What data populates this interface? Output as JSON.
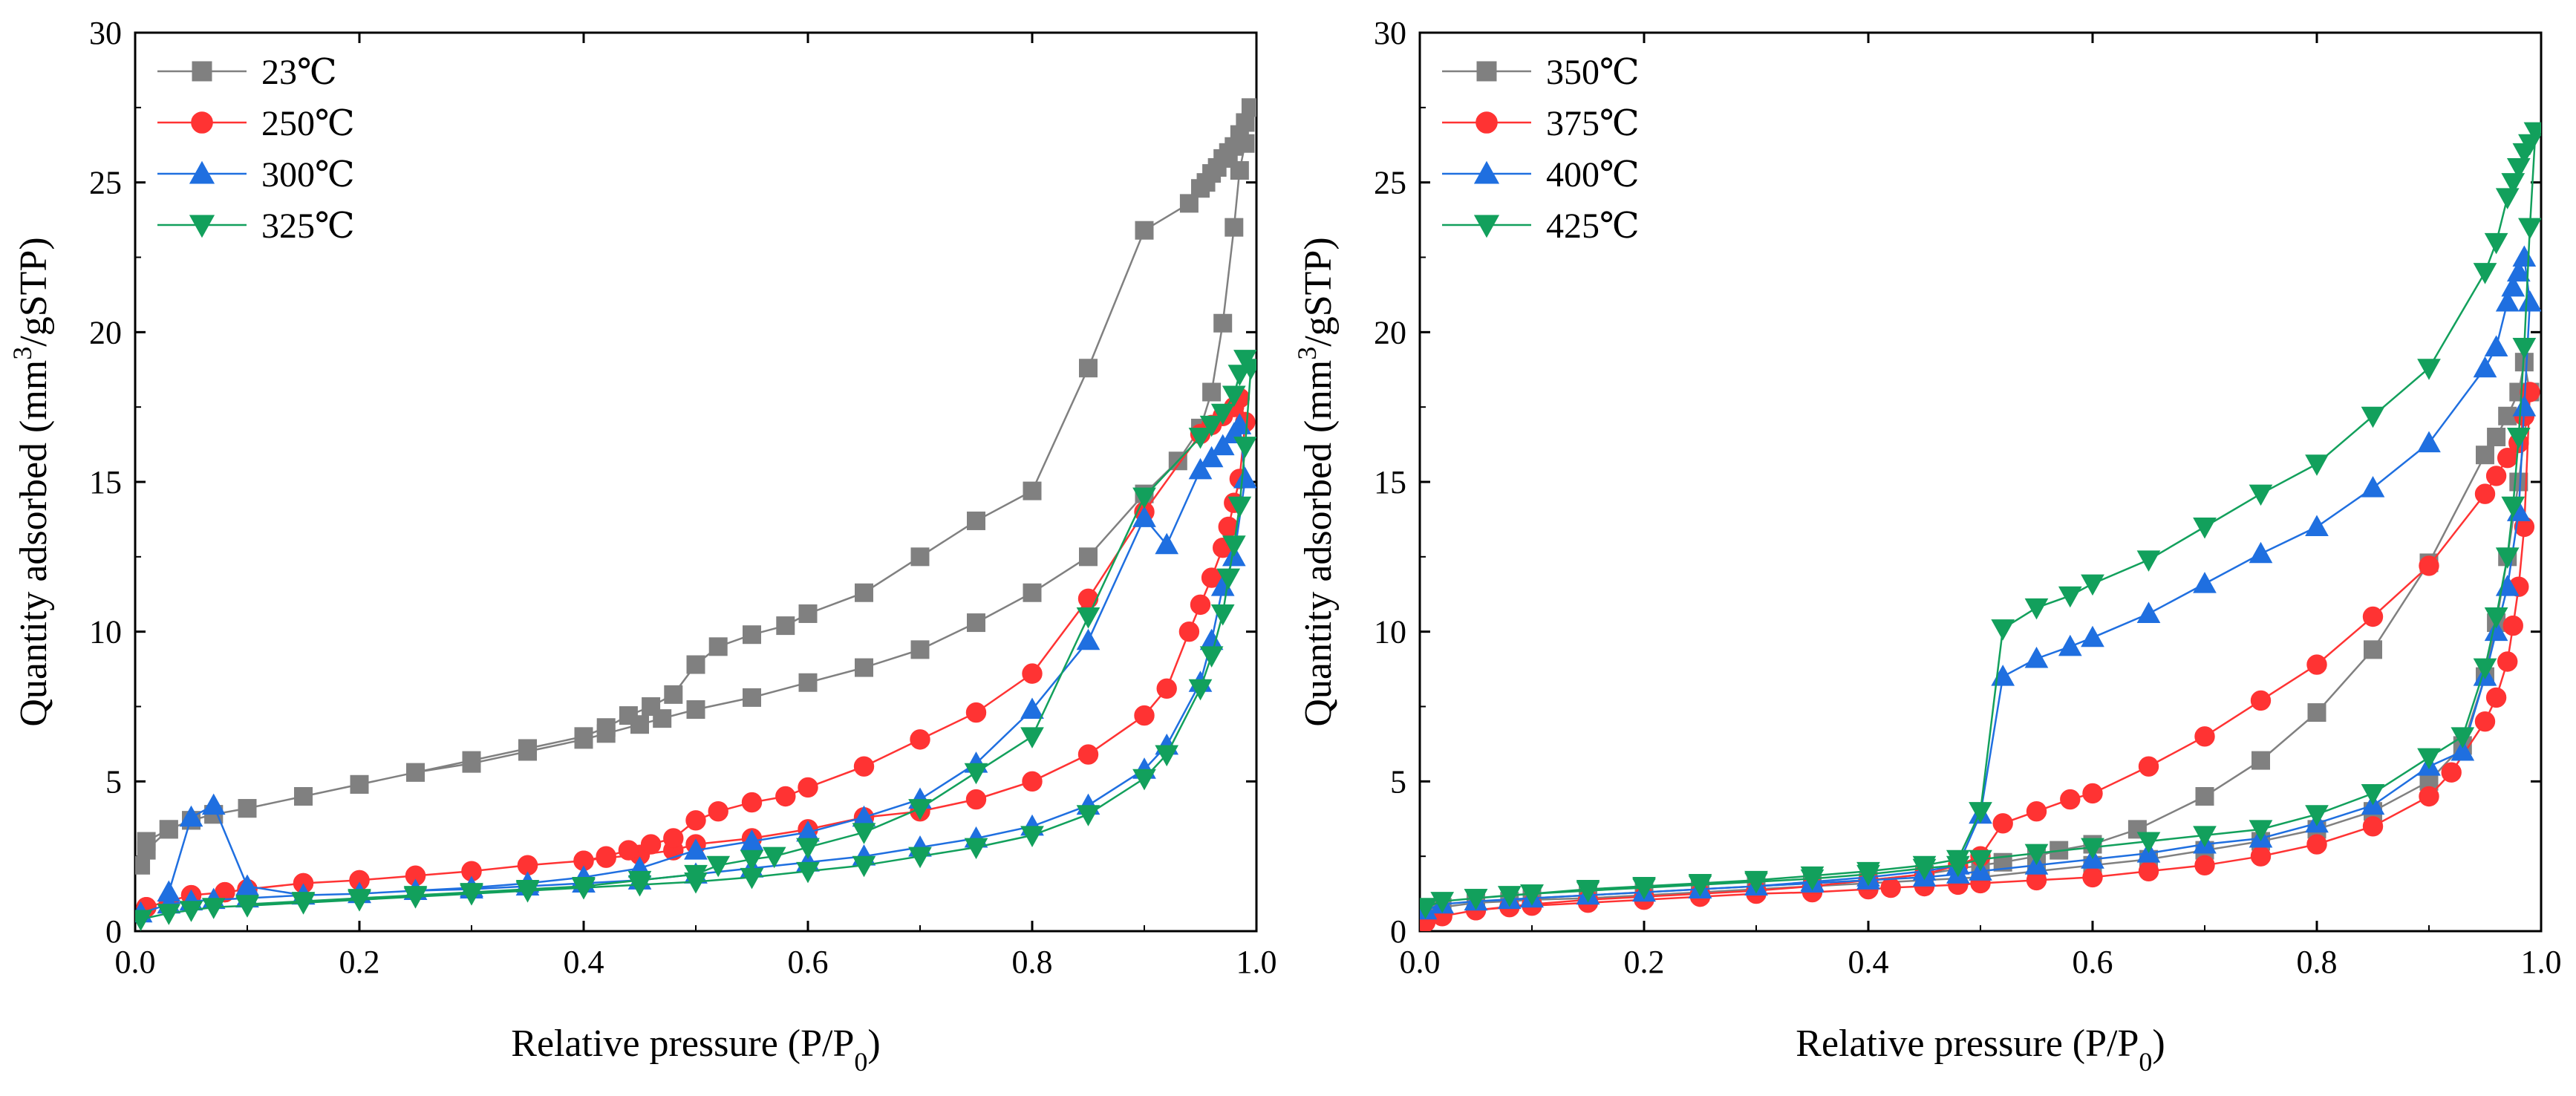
{
  "chart_data": [
    {
      "type": "line",
      "title": "",
      "xlabel": "Relative pressure (P/P",
      "xlabel_sub": "0",
      "xlabel_end": ")",
      "ylabel": "Quantity adsorbed (mm",
      "ylabel_sup": "3",
      "ylabel_end": "/gSTP)",
      "xlim": [
        0,
        1.0
      ],
      "ylim": [
        0,
        30
      ],
      "xticks": [
        0.0,
        0.2,
        0.4,
        0.6,
        0.8,
        1.0
      ],
      "xtick_labels": [
        "0.0",
        "0.2",
        "0.4",
        "0.6",
        "0.8",
        "1.0"
      ],
      "yticks": [
        0,
        5,
        10,
        15,
        20,
        25,
        30
      ],
      "ytick_labels": [
        "0",
        "5",
        "10",
        "15",
        "20",
        "25",
        "30"
      ],
      "grid": false,
      "legend_position": "top-left",
      "series": [
        {
          "name": "23℃",
          "color": "#808080",
          "marker": "square",
          "x": [
            0.005,
            0.01,
            0.03,
            0.05,
            0.07,
            0.1,
            0.15,
            0.2,
            0.25,
            0.3,
            0.35,
            0.4,
            0.42,
            0.45,
            0.47,
            0.5,
            0.55,
            0.6,
            0.65,
            0.7,
            0.75,
            0.8,
            0.85,
            0.9,
            0.93,
            0.95,
            0.96,
            0.97,
            0.98,
            0.985,
            0.99,
            0.995,
            0.99,
            0.985,
            0.98,
            0.975,
            0.97,
            0.965,
            0.96,
            0.955,
            0.95,
            0.94,
            0.9,
            0.85,
            0.8,
            0.75,
            0.7,
            0.65,
            0.6,
            0.58,
            0.55,
            0.52,
            0.5,
            0.48,
            0.46,
            0.44,
            0.42,
            0.4,
            0.35,
            0.3,
            0.25,
            0.2,
            0.15,
            0.1,
            0.07,
            0.05,
            0.03,
            0.01
          ],
          "y": [
            2.2,
            2.7,
            3.4,
            3.7,
            3.9,
            4.1,
            4.5,
            4.9,
            5.3,
            5.6,
            6.0,
            6.4,
            6.6,
            6.9,
            7.1,
            7.4,
            7.8,
            8.3,
            8.8,
            9.4,
            10.3,
            11.3,
            12.5,
            14.6,
            15.7,
            16.8,
            18.0,
            20.3,
            23.5,
            25.4,
            26.3,
            27.5,
            27.0,
            26.6,
            26.2,
            26.0,
            25.8,
            25.5,
            25.3,
            25.0,
            24.8,
            24.3,
            23.4,
            18.8,
            14.7,
            13.7,
            12.5,
            11.3,
            10.6,
            10.2,
            9.9,
            9.5,
            8.9,
            7.9,
            7.5,
            7.2,
            6.8,
            6.5,
            6.1,
            5.7,
            5.3,
            4.9,
            4.5,
            4.1,
            3.9,
            3.7,
            3.4,
            3.0
          ]
        },
        {
          "name": "250℃",
          "color": "#ff3333",
          "marker": "circle",
          "x": [
            0.01,
            0.03,
            0.05,
            0.08,
            0.1,
            0.15,
            0.2,
            0.25,
            0.3,
            0.35,
            0.4,
            0.42,
            0.45,
            0.48,
            0.5,
            0.55,
            0.6,
            0.65,
            0.7,
            0.75,
            0.8,
            0.85,
            0.9,
            0.92,
            0.94,
            0.95,
            0.96,
            0.97,
            0.975,
            0.98,
            0.985,
            0.99,
            0.985,
            0.98,
            0.97,
            0.96,
            0.95,
            0.9,
            0.85,
            0.8,
            0.75,
            0.7,
            0.65,
            0.6,
            0.58,
            0.55,
            0.52,
            0.5,
            0.48,
            0.46,
            0.44,
            0.42,
            0.4,
            0.35,
            0.3,
            0.25,
            0.2,
            0.15,
            0.1,
            0.08,
            0.05,
            0.03,
            0.01
          ],
          "y": [
            0.8,
            1.0,
            1.2,
            1.3,
            1.4,
            1.6,
            1.7,
            1.85,
            2.0,
            2.2,
            2.35,
            2.45,
            2.55,
            2.7,
            2.9,
            3.1,
            3.4,
            3.8,
            4.0,
            4.4,
            5.0,
            5.9,
            7.2,
            8.1,
            10.0,
            10.9,
            11.8,
            12.8,
            13.5,
            14.3,
            15.1,
            17.0,
            17.8,
            17.5,
            17.2,
            16.9,
            16.6,
            14.0,
            11.1,
            8.6,
            7.3,
            6.4,
            5.5,
            4.8,
            4.5,
            4.3,
            4.0,
            3.7,
            3.1,
            2.9,
            2.7,
            2.5,
            2.35,
            2.2,
            2.0,
            1.85,
            1.7,
            1.6,
            1.4,
            1.3,
            1.2,
            1.0,
            0.8
          ]
        },
        {
          "name": "300℃",
          "color": "#1f6fe0",
          "marker": "triangle-up",
          "x": [
            0.005,
            0.03,
            0.05,
            0.07,
            0.1,
            0.15,
            0.2,
            0.25,
            0.3,
            0.35,
            0.4,
            0.45,
            0.5,
            0.55,
            0.6,
            0.65,
            0.7,
            0.75,
            0.8,
            0.85,
            0.9,
            0.92,
            0.95,
            0.96,
            0.97,
            0.98,
            0.99,
            0.985,
            0.98,
            0.97,
            0.96,
            0.95,
            0.92,
            0.9,
            0.85,
            0.8,
            0.75,
            0.7,
            0.65,
            0.6,
            0.55,
            0.5,
            0.45,
            0.4,
            0.35,
            0.3,
            0.25,
            0.2,
            0.15,
            0.1,
            0.07,
            0.05,
            0.03
          ],
          "y": [
            0.6,
            0.9,
            1.0,
            1.05,
            1.1,
            1.2,
            1.25,
            1.35,
            1.4,
            1.5,
            1.6,
            1.7,
            1.9,
            2.1,
            2.3,
            2.5,
            2.8,
            3.1,
            3.5,
            4.2,
            5.4,
            6.2,
            8.3,
            9.7,
            11.5,
            12.5,
            15.1,
            16.9,
            16.6,
            16.2,
            15.8,
            15.4,
            12.9,
            13.8,
            9.7,
            7.4,
            5.6,
            4.4,
            3.8,
            3.3,
            3.0,
            2.7,
            2.1,
            1.8,
            1.6,
            1.45,
            1.35,
            1.25,
            1.2,
            1.5,
            4.2,
            3.8,
            1.3
          ]
        },
        {
          "name": "325℃",
          "color": "#12a05c",
          "marker": "triangle-down",
          "x": [
            0.005,
            0.03,
            0.05,
            0.07,
            0.1,
            0.15,
            0.2,
            0.25,
            0.3,
            0.35,
            0.4,
            0.45,
            0.5,
            0.55,
            0.6,
            0.65,
            0.7,
            0.75,
            0.8,
            0.85,
            0.9,
            0.92,
            0.95,
            0.96,
            0.97,
            0.975,
            0.98,
            0.985,
            0.99,
            0.995,
            0.99,
            0.985,
            0.98,
            0.97,
            0.96,
            0.95,
            0.9,
            0.85,
            0.8,
            0.75,
            0.7,
            0.65,
            0.6,
            0.57,
            0.55,
            0.52,
            0.5,
            0.45,
            0.4,
            0.35,
            0.3,
            0.25,
            0.2,
            0.15,
            0.1
          ],
          "y": [
            0.4,
            0.6,
            0.7,
            0.8,
            0.85,
            0.95,
            1.05,
            1.15,
            1.25,
            1.35,
            1.45,
            1.55,
            1.65,
            1.8,
            2.0,
            2.2,
            2.5,
            2.8,
            3.2,
            3.9,
            5.1,
            5.9,
            8.1,
            9.2,
            10.6,
            11.8,
            12.9,
            14.2,
            16.2,
            18.8,
            19.1,
            18.6,
            17.9,
            17.3,
            16.9,
            16.5,
            14.5,
            10.5,
            6.5,
            5.3,
            4.1,
            3.3,
            2.8,
            2.5,
            2.4,
            2.2,
            1.9,
            1.7,
            1.5,
            1.4,
            1.3,
            1.2,
            1.1,
            1.0,
            0.9
          ]
        }
      ]
    },
    {
      "type": "line",
      "title": "",
      "xlabel": "Relative pressure (P/P",
      "xlabel_sub": "0",
      "xlabel_end": ")",
      "ylabel": "Quantity adsorbed (mm",
      "ylabel_sup": "3",
      "ylabel_end": "/gSTP)",
      "xlim": [
        0,
        1.0
      ],
      "ylim": [
        0,
        30
      ],
      "xticks": [
        0.0,
        0.2,
        0.4,
        0.6,
        0.8,
        1.0
      ],
      "xtick_labels": [
        "0.0",
        "0.2",
        "0.4",
        "0.6",
        "0.8",
        "1.0"
      ],
      "yticks": [
        0,
        5,
        10,
        15,
        20,
        25,
        30
      ],
      "ytick_labels": [
        "0",
        "5",
        "10",
        "15",
        "20",
        "25",
        "30"
      ],
      "grid": false,
      "legend_position": "top-left",
      "series": [
        {
          "name": "350℃",
          "color": "#808080",
          "marker": "square",
          "x": [
            0.005,
            0.02,
            0.05,
            0.08,
            0.1,
            0.15,
            0.2,
            0.25,
            0.3,
            0.35,
            0.4,
            0.45,
            0.5,
            0.55,
            0.6,
            0.65,
            0.7,
            0.75,
            0.8,
            0.85,
            0.9,
            0.93,
            0.95,
            0.96,
            0.97,
            0.98,
            0.99,
            0.985,
            0.98,
            0.97,
            0.96,
            0.95,
            0.9,
            0.85,
            0.8,
            0.75,
            0.7,
            0.64,
            0.6,
            0.57,
            0.55,
            0.52,
            0.5,
            0.45,
            0.4,
            0.35,
            0.3,
            0.25,
            0.2,
            0.15,
            0.1,
            0.05
          ],
          "y": [
            0.6,
            0.8,
            0.95,
            1.0,
            1.05,
            1.1,
            1.2,
            1.3,
            1.4,
            1.5,
            1.6,
            1.7,
            1.8,
            2.0,
            2.2,
            2.4,
            2.7,
            3.0,
            3.4,
            4.0,
            5.0,
            6.2,
            8.5,
            10.3,
            12.5,
            15.0,
            18.0,
            19.0,
            18.0,
            17.2,
            16.5,
            15.9,
            12.3,
            9.4,
            7.3,
            5.7,
            4.5,
            3.4,
            2.9,
            2.7,
            2.5,
            2.3,
            2.2,
            1.9,
            1.7,
            1.6,
            1.5,
            1.4,
            1.3,
            1.2,
            1.1,
            0.95
          ]
        },
        {
          "name": "375℃",
          "color": "#ff3333",
          "marker": "circle",
          "x": [
            0.005,
            0.02,
            0.05,
            0.08,
            0.1,
            0.15,
            0.2,
            0.25,
            0.3,
            0.35,
            0.4,
            0.42,
            0.45,
            0.48,
            0.5,
            0.55,
            0.6,
            0.65,
            0.7,
            0.75,
            0.8,
            0.85,
            0.9,
            0.92,
            0.95,
            0.96,
            0.97,
            0.975,
            0.98,
            0.985,
            0.99,
            0.985,
            0.98,
            0.97,
            0.96,
            0.95,
            0.9,
            0.85,
            0.8,
            0.75,
            0.7,
            0.65,
            0.6,
            0.58,
            0.55,
            0.52,
            0.5,
            0.48,
            0.45,
            0.4,
            0.35,
            0.3,
            0.25,
            0.2,
            0.15,
            0.1,
            0.05
          ],
          "y": [
            0.3,
            0.5,
            0.7,
            0.8,
            0.85,
            0.95,
            1.05,
            1.15,
            1.25,
            1.3,
            1.4,
            1.45,
            1.5,
            1.55,
            1.6,
            1.7,
            1.8,
            2.0,
            2.2,
            2.5,
            2.9,
            3.5,
            4.5,
            5.3,
            7.0,
            7.8,
            9.0,
            10.2,
            11.5,
            13.5,
            18.0,
            17.2,
            16.3,
            15.8,
            15.2,
            14.6,
            12.2,
            10.5,
            8.9,
            7.7,
            6.5,
            5.5,
            4.6,
            4.4,
            4.0,
            3.6,
            2.5,
            2.2,
            1.9,
            1.7,
            1.5,
            1.35,
            1.25,
            1.15,
            1.05,
            0.9,
            0.7
          ]
        },
        {
          "name": "400℃",
          "color": "#1f6fe0",
          "marker": "triangle-up",
          "x": [
            0.005,
            0.02,
            0.05,
            0.08,
            0.1,
            0.15,
            0.2,
            0.25,
            0.3,
            0.35,
            0.4,
            0.45,
            0.48,
            0.5,
            0.55,
            0.6,
            0.65,
            0.7,
            0.75,
            0.8,
            0.85,
            0.9,
            0.93,
            0.95,
            0.96,
            0.97,
            0.98,
            0.985,
            0.99,
            0.985,
            0.98,
            0.975,
            0.97,
            0.96,
            0.95,
            0.9,
            0.85,
            0.8,
            0.75,
            0.7,
            0.65,
            0.6,
            0.58,
            0.55,
            0.52,
            0.5,
            0.48,
            0.45,
            0.4,
            0.35,
            0.3,
            0.25,
            0.2,
            0.15,
            0.1,
            0.05
          ],
          "y": [
            0.7,
            0.9,
            1.0,
            1.05,
            1.1,
            1.2,
            1.3,
            1.4,
            1.5,
            1.6,
            1.7,
            1.8,
            1.9,
            2.0,
            2.2,
            2.4,
            2.6,
            2.9,
            3.1,
            3.6,
            4.2,
            5.5,
            6.0,
            8.5,
            10.0,
            11.5,
            14.0,
            17.5,
            21.0,
            22.5,
            22.0,
            21.5,
            21.0,
            19.5,
            18.8,
            16.3,
            14.8,
            13.5,
            12.6,
            11.6,
            10.6,
            9.8,
            9.5,
            9.1,
            8.5,
            3.9,
            2.2,
            2.0,
            1.8,
            1.65,
            1.5,
            1.4,
            1.3,
            1.2,
            1.1,
            1.0
          ]
        },
        {
          "name": "425℃",
          "color": "#12a05c",
          "marker": "triangle-down",
          "x": [
            0.005,
            0.02,
            0.05,
            0.08,
            0.1,
            0.15,
            0.2,
            0.25,
            0.3,
            0.35,
            0.4,
            0.45,
            0.48,
            0.5,
            0.55,
            0.6,
            0.65,
            0.7,
            0.75,
            0.8,
            0.85,
            0.9,
            0.93,
            0.95,
            0.96,
            0.97,
            0.975,
            0.98,
            0.985,
            0.99,
            0.995,
            0.99,
            0.985,
            0.98,
            0.975,
            0.97,
            0.96,
            0.95,
            0.9,
            0.85,
            0.8,
            0.75,
            0.7,
            0.65,
            0.6,
            0.58,
            0.55,
            0.52,
            0.5,
            0.48,
            0.45,
            0.4,
            0.35,
            0.3,
            0.25,
            0.2,
            0.15,
            0.1,
            0.05
          ],
          "y": [
            0.8,
            1.0,
            1.1,
            1.2,
            1.25,
            1.35,
            1.45,
            1.55,
            1.65,
            1.75,
            1.9,
            2.1,
            2.2,
            2.4,
            2.6,
            2.8,
            3.0,
            3.2,
            3.4,
            3.9,
            4.6,
            5.8,
            6.5,
            8.8,
            10.5,
            12.5,
            14.2,
            16.5,
            19.5,
            23.5,
            26.7,
            26.3,
            26.0,
            25.5,
            25.0,
            24.5,
            23.0,
            22.0,
            18.8,
            17.2,
            15.6,
            14.6,
            13.5,
            12.4,
            11.6,
            11.2,
            10.8,
            10.1,
            4.0,
            2.4,
            2.2,
            2.0,
            1.85,
            1.7,
            1.6,
            1.5,
            1.4,
            1.25,
            1.1
          ]
        }
      ]
    }
  ]
}
